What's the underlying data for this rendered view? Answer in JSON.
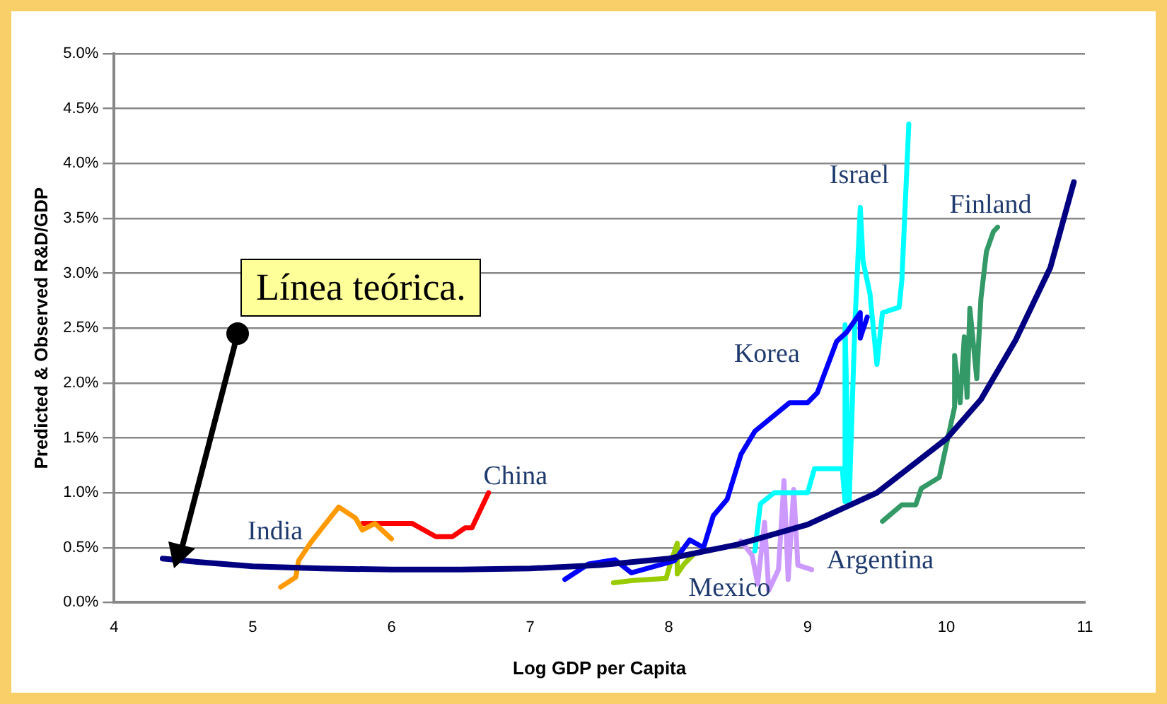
{
  "chart_data": {
    "type": "line",
    "xlabel": "Log GDP per Capita",
    "ylabel": "Predicted & Observed R&D/GDP",
    "xlim": [
      4,
      11
    ],
    "xticks": [
      4,
      5,
      6,
      7,
      8,
      9,
      10,
      11
    ],
    "ylim": [
      0,
      5
    ],
    "yticks": [
      {
        "value": 0,
        "label": "0.0%"
      },
      {
        "value": 0.5,
        "label": "0.5%"
      },
      {
        "value": 1,
        "label": "1.0%"
      },
      {
        "value": 1.5,
        "label": "1.5%"
      },
      {
        "value": 2,
        "label": "2.0%"
      },
      {
        "value": 2.5,
        "label": "2.5%"
      },
      {
        "value": 3,
        "label": "3.0%"
      },
      {
        "value": 3.5,
        "label": "3.5%"
      },
      {
        "value": 4,
        "label": "4.0%"
      },
      {
        "value": 4.5,
        "label": "4.5%"
      },
      {
        "value": 5,
        "label": "5.0%"
      }
    ],
    "grid": "y",
    "marker": "none",
    "annotations": [
      "Línea teórica."
    ],
    "series": [
      {
        "color": "#000080",
        "x": [
          4.35,
          4.6,
          5,
          5.5,
          6,
          6.5,
          7,
          7.5,
          8,
          8.5,
          9,
          9.5,
          10,
          10.25,
          10.5,
          10.75,
          10.92
        ],
        "values": [
          0.4,
          0.37,
          0.33,
          0.31,
          0.3,
          0.3,
          0.31,
          0.34,
          0.4,
          0.53,
          0.71,
          1.0,
          1.49,
          1.85,
          2.39,
          3.05,
          3.83
        ]
      },
      {
        "name": "India",
        "color": "#ff9900",
        "x": [
          5.2,
          5.31,
          5.33,
          5.42,
          5.5,
          5.62,
          5.74,
          5.79,
          5.88,
          6.0
        ],
        "values": [
          0.14,
          0.23,
          0.38,
          0.55,
          0.68,
          0.87,
          0.77,
          0.66,
          0.72,
          0.58
        ]
      },
      {
        "name": "China",
        "color": "#ff0000",
        "x": [
          5.79,
          6.15,
          6.32,
          6.44,
          6.53,
          6.58,
          6.7
        ],
        "values": [
          0.72,
          0.72,
          0.6,
          0.6,
          0.68,
          0.68,
          1.0
        ]
      },
      {
        "name": "Korea",
        "color": "#0000ff",
        "x": [
          7.25,
          7.42,
          7.61,
          7.73,
          8.04,
          8.15,
          8.25,
          8.32,
          8.42,
          8.52,
          8.62,
          8.87,
          9.0,
          9.07,
          9.21,
          9.28,
          9.38,
          9.38,
          9.43
        ],
        "values": [
          0.21,
          0.35,
          0.39,
          0.27,
          0.38,
          0.57,
          0.5,
          0.79,
          0.94,
          1.35,
          1.56,
          1.82,
          1.82,
          1.91,
          2.38,
          2.46,
          2.64,
          2.41,
          2.6
        ]
      },
      {
        "name": "Israel",
        "color": "#00ffff",
        "x": [
          8.62,
          8.66,
          8.76,
          8.88,
          9.0,
          9.05,
          9.25,
          9.27,
          9.27,
          9.3,
          9.34,
          9.38,
          9.4,
          9.45,
          9.5,
          9.54,
          9.66,
          9.68,
          9.73
        ],
        "values": [
          0.47,
          0.9,
          1.0,
          1.0,
          1.0,
          1.22,
          1.22,
          0.92,
          2.53,
          0.92,
          2.5,
          3.6,
          3.11,
          2.81,
          2.17,
          2.64,
          2.69,
          2.94,
          4.36
        ]
      },
      {
        "name": "Finland",
        "color": "#339966",
        "x": [
          9.54,
          9.68,
          9.78,
          9.82,
          9.95,
          10.06,
          10.06,
          10.1,
          10.13,
          10.15,
          10.17,
          10.22,
          10.25,
          10.29,
          10.34,
          10.37
        ],
        "values": [
          0.74,
          0.89,
          0.89,
          1.04,
          1.14,
          1.78,
          2.25,
          1.82,
          2.42,
          1.87,
          2.68,
          2.04,
          2.77,
          3.2,
          3.38,
          3.42
        ]
      },
      {
        "name": "Mexico",
        "color": "#99cc00",
        "x": [
          7.6,
          7.74,
          7.98,
          8.01,
          8.06,
          8.06,
          8.11,
          8.18
        ],
        "values": [
          0.18,
          0.2,
          0.22,
          0.35,
          0.54,
          0.26,
          0.35,
          0.44
        ]
      },
      {
        "name": "Argentina",
        "color": "#cc99ff",
        "x": [
          8.52,
          8.6,
          8.64,
          8.69,
          8.72,
          8.79,
          8.83,
          8.86,
          8.9,
          8.93,
          9.03
        ],
        "values": [
          0.56,
          0.43,
          0.17,
          0.73,
          0.11,
          0.3,
          1.11,
          0.21,
          1.03,
          0.34,
          0.3
        ]
      }
    ]
  }
}
